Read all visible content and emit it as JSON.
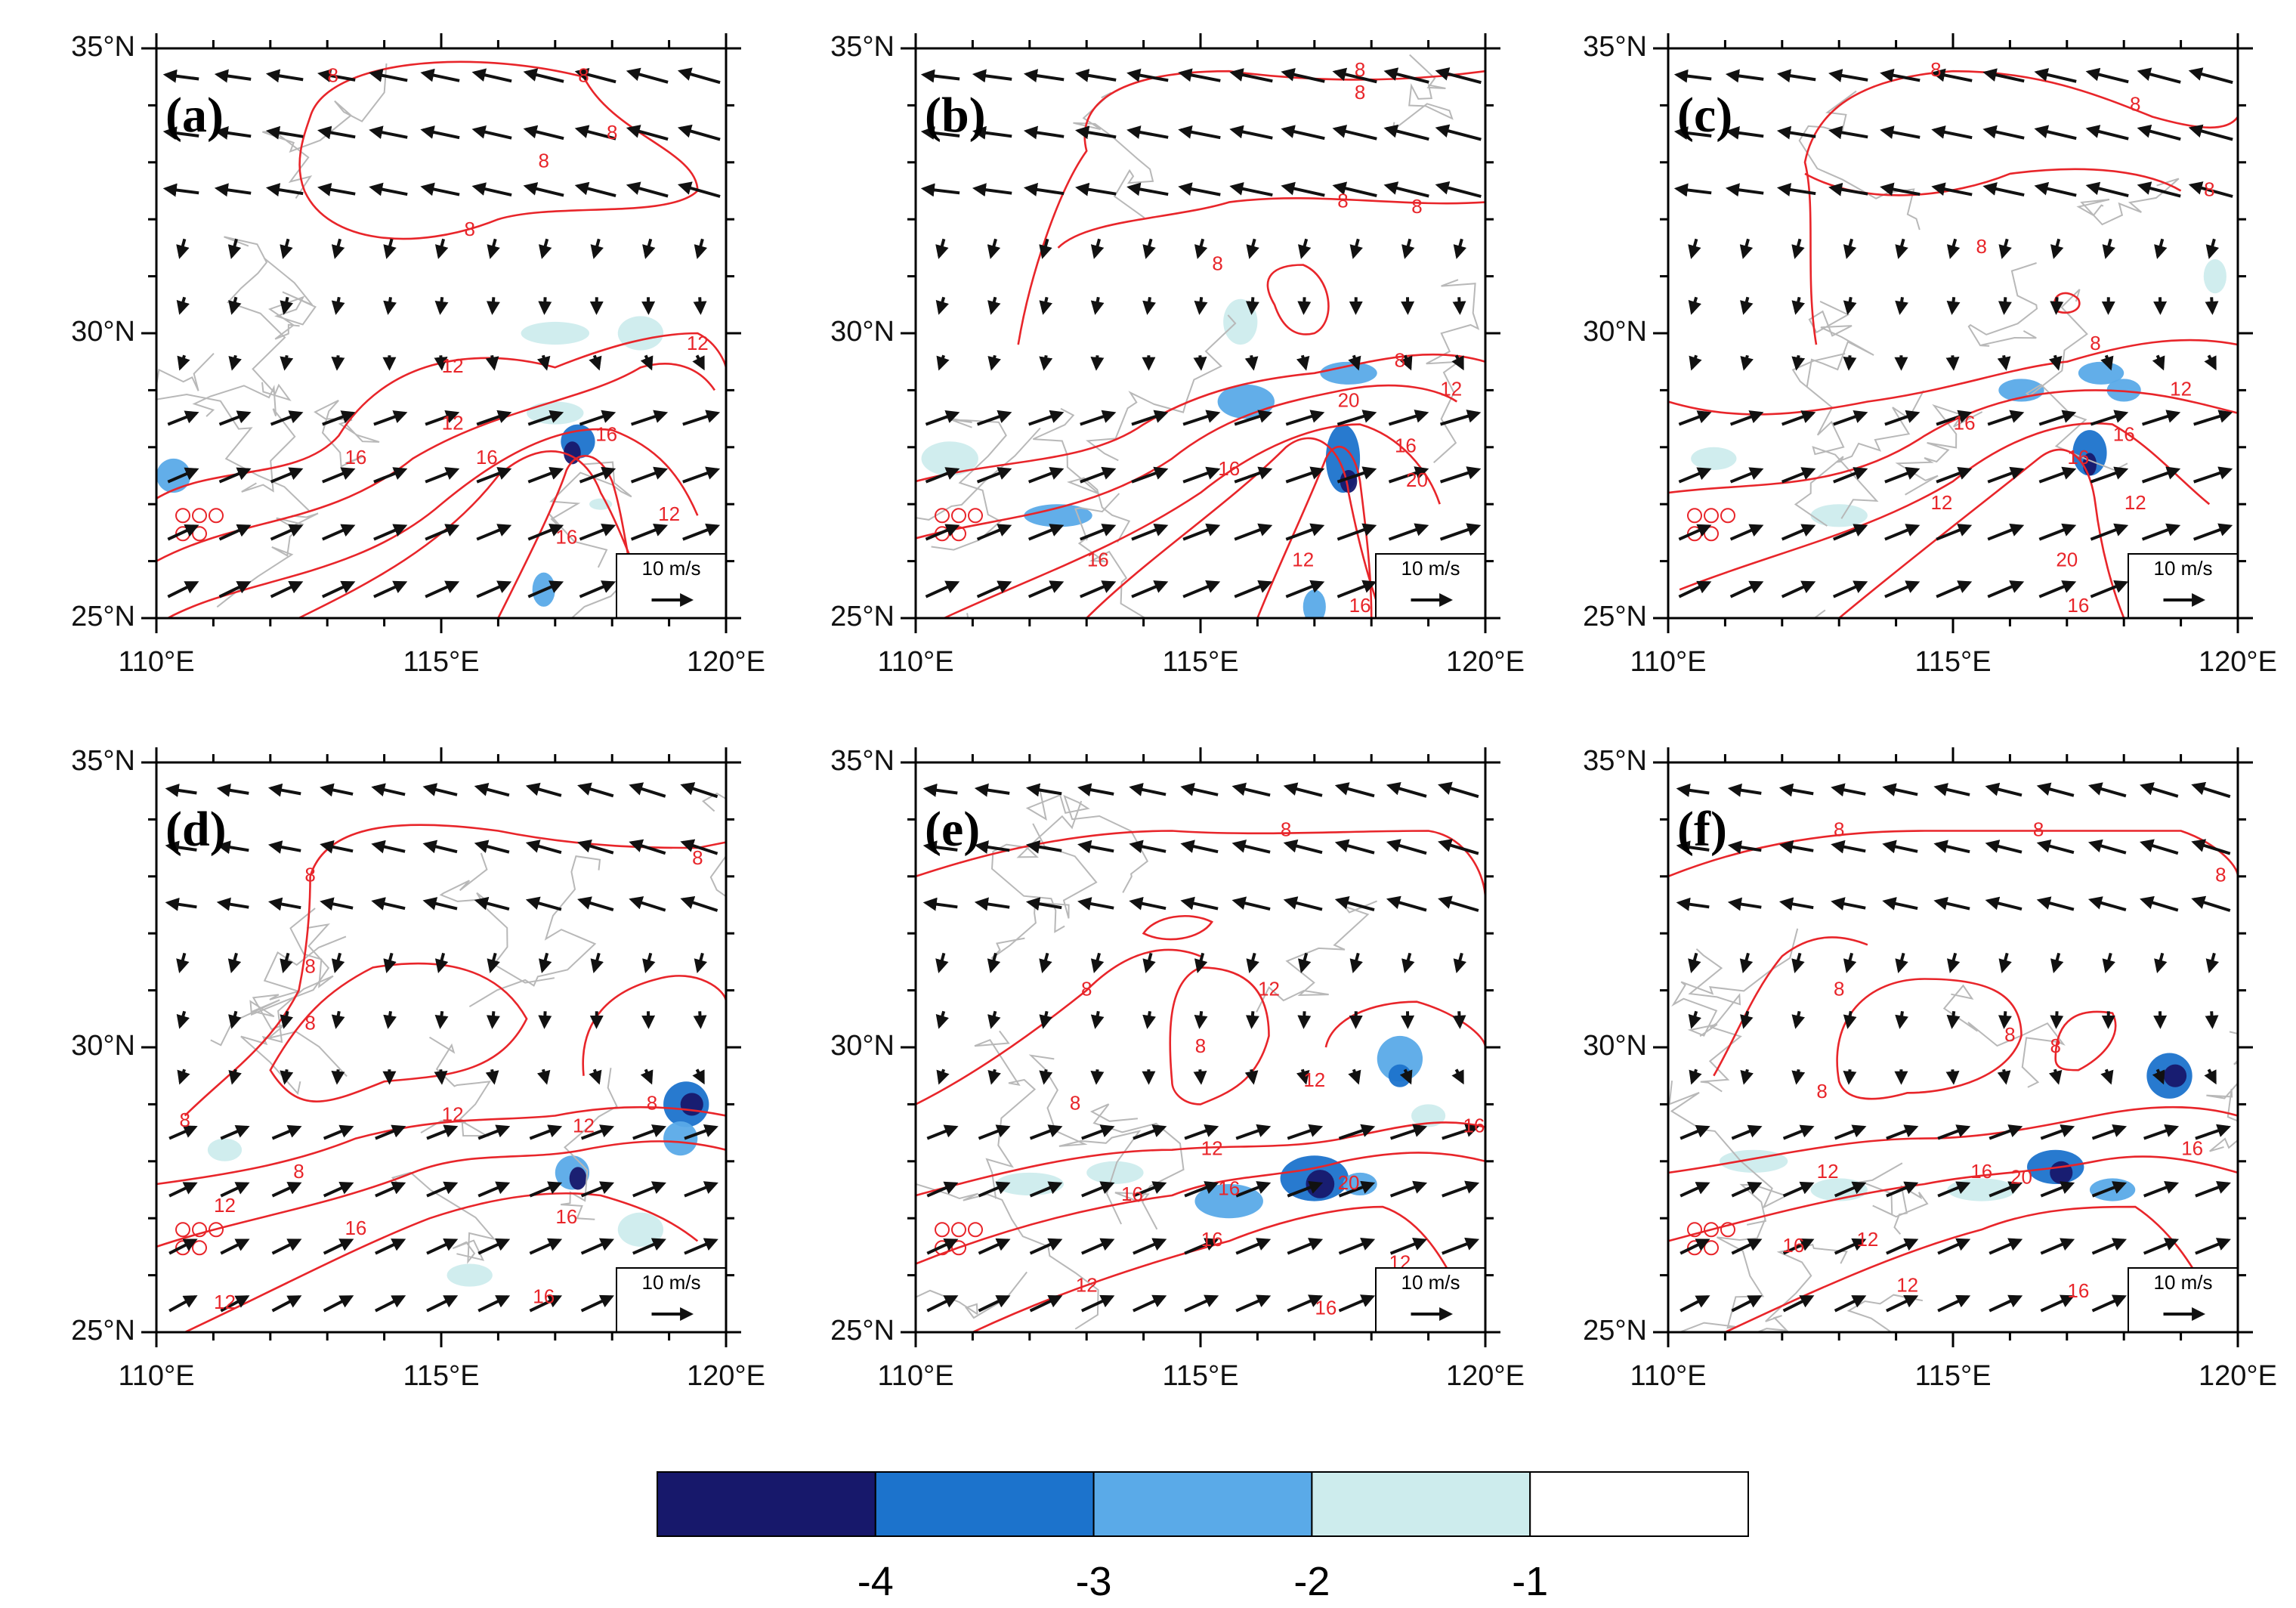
{
  "figure": {
    "lat_ticks": [
      "25°N",
      "30°N",
      "35°N"
    ],
    "lon_ticks": [
      "110°E",
      "115°E",
      "120°E"
    ],
    "reference_vector": "10 m/s",
    "contour_color": "#e8252a",
    "vector_color": "#111111",
    "border_color": "#b8b8b8"
  },
  "panels": [
    {
      "label": "(a)",
      "contour_labels": [
        "8",
        "8",
        "8",
        "8",
        "8",
        "12",
        "12",
        "12",
        "16",
        "16",
        "16",
        "16",
        "12"
      ]
    },
    {
      "label": "(b)",
      "contour_labels": [
        "8",
        "8",
        "8",
        "8",
        "8",
        "8",
        "12",
        "16",
        "20",
        "16",
        "12",
        "16",
        "20",
        "16"
      ]
    },
    {
      "label": "(c)",
      "contour_labels": [
        "8",
        "8",
        "8",
        "8",
        "8",
        "12",
        "16",
        "16",
        "12",
        "16",
        "20",
        "12",
        "16"
      ]
    },
    {
      "label": "(d)",
      "contour_labels": [
        "8",
        "8",
        "8",
        "8",
        "8",
        "8",
        "8",
        "12",
        "12",
        "12",
        "16",
        "16",
        "12",
        "16"
      ]
    },
    {
      "label": "(e)",
      "contour_labels": [
        "8",
        "8",
        "8",
        "8",
        "12",
        "12",
        "12",
        "16",
        "16",
        "16",
        "20",
        "12",
        "16",
        "12",
        "16"
      ]
    },
    {
      "label": "(f)",
      "contour_labels": [
        "8",
        "8",
        "8",
        "8",
        "8",
        "8",
        "8",
        "12",
        "12",
        "16",
        "16",
        "20",
        "16",
        "12",
        "16"
      ]
    }
  ],
  "colorbar": {
    "colors": [
      "#17186b",
      "#1c73cc",
      "#5aaae8",
      "#cdeced",
      "#ffffff"
    ],
    "labels": [
      "-4",
      "-3",
      "-2",
      "-1"
    ]
  }
}
